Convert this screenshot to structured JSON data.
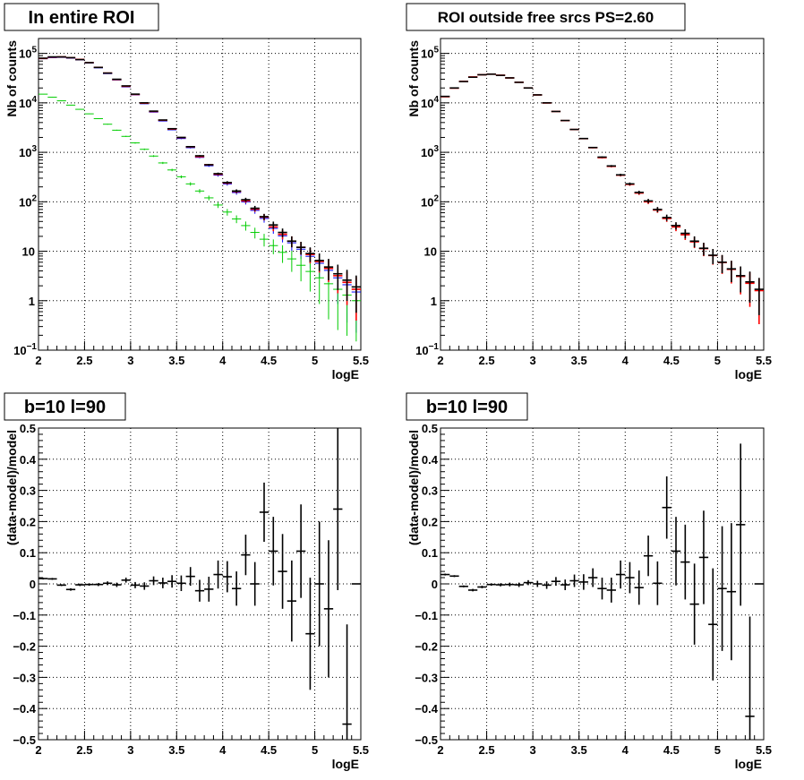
{
  "colors": {
    "data": "#000000",
    "model": "#ff0000",
    "component_blue": "#0000ff",
    "component_green": "#00cc00",
    "grid": "#000000"
  },
  "chart_data": [
    {
      "type": "scatter",
      "title": "In entire ROI",
      "xlabel": "logE",
      "ylabel": "Nb of counts",
      "xlim": [
        2,
        5.5
      ],
      "ylim": [
        0.1,
        200000
      ],
      "log_y": true,
      "grid": true,
      "x_ticks": [
        "2",
        "2.5",
        "3",
        "3.5",
        "4",
        "4.5",
        "5",
        "5.5"
      ],
      "y_ticks": [
        {
          "value": 0.1,
          "mant": "10",
          "exp": "−1"
        },
        {
          "value": 1,
          "mant": "1",
          "exp": ""
        },
        {
          "value": 10,
          "mant": "10",
          "exp": ""
        },
        {
          "value": 100,
          "mant": "10",
          "exp": "2"
        },
        {
          "value": 1000,
          "mant": "10",
          "exp": "3"
        },
        {
          "value": 10000,
          "mant": "10",
          "exp": "4"
        },
        {
          "value": 100000,
          "mant": "10",
          "exp": "5"
        }
      ],
      "x": [
        2.05,
        2.15,
        2.25,
        2.35,
        2.45,
        2.55,
        2.65,
        2.75,
        2.85,
        2.95,
        3.05,
        3.15,
        3.25,
        3.35,
        3.45,
        3.55,
        3.65,
        3.75,
        3.85,
        3.95,
        4.05,
        4.15,
        4.25,
        4.35,
        4.45,
        4.55,
        4.65,
        4.75,
        4.85,
        4.95,
        5.05,
        5.15,
        5.25,
        5.35,
        5.45
      ],
      "series": [
        {
          "role": "data",
          "color": "#000000",
          "values": [
            80000,
            85000,
            85000,
            82000,
            75000,
            65000,
            52000,
            40000,
            30000,
            22000,
            15000,
            10000,
            6800,
            4500,
            3000,
            2000,
            1300,
            850,
            560,
            370,
            245,
            165,
            110,
            74,
            50,
            34,
            24,
            16,
            12,
            9,
            6.5,
            4.8,
            3.5,
            2.6,
            1.9
          ],
          "err": [
            0.005,
            0.005,
            0.005,
            0.005,
            0.005,
            0.005,
            0.005,
            0.005,
            0.006,
            0.006,
            0.008,
            0.01,
            0.012,
            0.015,
            0.02,
            0.022,
            0.028,
            0.034,
            0.042,
            0.052,
            0.064,
            0.078,
            0.095,
            0.115,
            0.14,
            0.17,
            0.2,
            0.25,
            0.29,
            0.33,
            0.39,
            0.46,
            0.53,
            0.62,
            0.7
          ]
        },
        {
          "role": "model",
          "color": "#ff0000",
          "values": [
            79000,
            84000,
            85000,
            82000,
            75500,
            65200,
            52200,
            40000,
            29600,
            21600,
            14800,
            9850,
            6700,
            4450,
            2950,
            1980,
            1290,
            820,
            560,
            360,
            240,
            162,
            105,
            71,
            49,
            31,
            22,
            16,
            12,
            8.6,
            6.2,
            4.5,
            3.2,
            2.35,
            1.7
          ]
        },
        {
          "role": "component",
          "color": "#0000ff",
          "values": [
            78000,
            82000,
            83000,
            80000,
            74000,
            64000,
            51000,
            39000,
            29000,
            21000,
            14500,
            9600,
            6500,
            4300,
            2850,
            1900,
            1240,
            790,
            535,
            345,
            230,
            154,
            100,
            67,
            46,
            29,
            20.5,
            14.8,
            11,
            7.9,
            5.7,
            4.1,
            2.9,
            2.1,
            1.5
          ]
        },
        {
          "role": "component",
          "color": "#00cc00",
          "values": [
            15000,
            13000,
            11000,
            9000,
            7400,
            6000,
            4800,
            3700,
            2800,
            2100,
            1550,
            1150,
            840,
            610,
            440,
            320,
            230,
            165,
            120,
            86,
            62,
            45,
            33,
            24,
            17.5,
            13,
            9.5,
            7,
            5.2,
            3.9,
            2.9,
            2.2,
            1.7,
            1.3,
            1
          ]
        }
      ]
    },
    {
      "type": "scatter",
      "title": "ROI outside free srcs PS=2.60",
      "xlabel": "logE",
      "ylabel": "Nb of counts",
      "xlim": [
        2,
        5.5
      ],
      "ylim": [
        0.1,
        200000
      ],
      "log_y": true,
      "grid": true,
      "x_ticks": [
        "2",
        "2.5",
        "3",
        "3.5",
        "4",
        "4.5",
        "5",
        "5.5"
      ],
      "y_ticks": [
        {
          "value": 0.1,
          "mant": "10",
          "exp": "−1"
        },
        {
          "value": 1,
          "mant": "1",
          "exp": ""
        },
        {
          "value": 10,
          "mant": "10",
          "exp": ""
        },
        {
          "value": 100,
          "mant": "10",
          "exp": "2"
        },
        {
          "value": 1000,
          "mant": "10",
          "exp": "3"
        },
        {
          "value": 10000,
          "mant": "10",
          "exp": "4"
        },
        {
          "value": 100000,
          "mant": "10",
          "exp": "5"
        }
      ],
      "x": [
        2.05,
        2.15,
        2.25,
        2.35,
        2.45,
        2.55,
        2.65,
        2.75,
        2.85,
        2.95,
        3.05,
        3.15,
        3.25,
        3.35,
        3.45,
        3.55,
        3.65,
        3.75,
        3.85,
        3.95,
        4.05,
        4.15,
        4.25,
        4.35,
        4.45,
        4.55,
        4.65,
        4.75,
        4.85,
        4.95,
        5.05,
        5.15,
        5.25,
        5.35,
        5.45
      ],
      "series": [
        {
          "role": "data",
          "color": "#000000",
          "values": [
            13500,
            20000,
            27000,
            33000,
            37000,
            38000,
            36000,
            32000,
            26000,
            20000,
            14500,
            10000,
            6700,
            4400,
            2900,
            1900,
            1250,
            800,
            530,
            350,
            230,
            155,
            104,
            70,
            48,
            33,
            23,
            16,
            11.5,
            8.3,
            6,
            4.4,
            3.2,
            2.4,
            1.7
          ],
          "err": [
            0.006,
            0.006,
            0.006,
            0.006,
            0.006,
            0.006,
            0.006,
            0.006,
            0.006,
            0.007,
            0.009,
            0.011,
            0.013,
            0.016,
            0.02,
            0.023,
            0.028,
            0.035,
            0.043,
            0.053,
            0.066,
            0.08,
            0.098,
            0.12,
            0.145,
            0.17,
            0.21,
            0.25,
            0.29,
            0.34,
            0.4,
            0.46,
            0.54,
            0.62,
            0.7
          ]
        },
        {
          "role": "model",
          "color": "#ff0000",
          "values": [
            13300,
            19800,
            27200,
            33400,
            37000,
            38100,
            36200,
            31900,
            26100,
            20000,
            14450,
            9950,
            6700,
            4370,
            2890,
            1890,
            1240,
            780,
            520,
            345,
            225,
            150,
            100,
            68,
            46,
            31,
            21.5,
            15.5,
            11.3,
            8.2,
            5.9,
            4.3,
            3.1,
            2.25,
            1.6
          ]
        }
      ]
    },
    {
      "type": "scatter",
      "title": "b=10 l=90",
      "xlabel": "logE",
      "ylabel": "(data-model)/model",
      "xlim": [
        2,
        5.5
      ],
      "ylim": [
        -0.5,
        0.5
      ],
      "grid": true,
      "x_ticks": [
        "2",
        "2.5",
        "3",
        "3.5",
        "4",
        "4.5",
        "5",
        "5.5"
      ],
      "y_ticks": [
        "−0.5",
        "−0.4",
        "−0.3",
        "−0.2",
        "−0.1",
        "0",
        "0.1",
        "0.2",
        "0.3",
        "0.4",
        "0.5"
      ],
      "x": [
        2.05,
        2.15,
        2.25,
        2.35,
        2.45,
        2.55,
        2.65,
        2.75,
        2.85,
        2.95,
        3.05,
        3.15,
        3.25,
        3.35,
        3.45,
        3.55,
        3.65,
        3.75,
        3.85,
        3.95,
        4.05,
        4.15,
        4.25,
        4.35,
        4.45,
        4.55,
        4.65,
        4.75,
        4.85,
        4.95,
        5.05,
        5.15,
        5.25,
        5.35,
        5.45
      ],
      "values": [
        0.017,
        0.016,
        -0.004,
        -0.018,
        -0.003,
        -0.002,
        -0.002,
        0.002,
        -0.003,
        0.012,
        -0.004,
        -0.007,
        0.01,
        0.003,
        0.008,
        0.002,
        0.024,
        -0.022,
        -0.017,
        0.03,
        0.023,
        -0.015,
        0.093,
        0.0,
        0.23,
        0.105,
        0.04,
        -0.055,
        0.105,
        -0.16,
        0.0,
        -0.08,
        0.24,
        -0.45,
        0.0
      ],
      "err": [
        0.003,
        0.003,
        0.003,
        0.004,
        0.004,
        0.004,
        0.005,
        0.006,
        0.007,
        0.008,
        0.01,
        0.012,
        0.014,
        0.017,
        0.02,
        0.025,
        0.03,
        0.035,
        0.04,
        0.045,
        0.05,
        0.055,
        0.065,
        0.07,
        0.095,
        0.11,
        0.12,
        0.13,
        0.15,
        0.18,
        0.2,
        0.22,
        0.26,
        0.32,
        0.0
      ]
    },
    {
      "type": "scatter",
      "title": "b=10 l=90",
      "xlabel": "logE",
      "ylabel": "(data-model)/model",
      "xlim": [
        2,
        5.5
      ],
      "ylim": [
        -0.5,
        0.5
      ],
      "grid": true,
      "x_ticks": [
        "2",
        "2.5",
        "3",
        "3.5",
        "4",
        "4.5",
        "5",
        "5.5"
      ],
      "y_ticks": [
        "−0.5",
        "−0.4",
        "−0.3",
        "−0.2",
        "−0.1",
        "0",
        "0.1",
        "0.2",
        "0.3",
        "0.4",
        "0.5"
      ],
      "x": [
        2.05,
        2.15,
        2.25,
        2.35,
        2.45,
        2.55,
        2.65,
        2.75,
        2.85,
        2.95,
        3.05,
        3.15,
        3.25,
        3.35,
        3.45,
        3.55,
        3.65,
        3.75,
        3.85,
        3.95,
        4.05,
        4.15,
        4.25,
        4.35,
        4.45,
        4.55,
        4.65,
        4.75,
        4.85,
        4.95,
        5.05,
        5.15,
        5.25,
        5.35,
        5.45
      ],
      "values": [
        0.03,
        0.025,
        -0.008,
        -0.02,
        -0.01,
        -0.002,
        -0.003,
        -0.002,
        -0.003,
        0.004,
        0.0,
        -0.004,
        0.008,
        -0.003,
        0.01,
        0.006,
        0.02,
        -0.015,
        -0.02,
        0.03,
        0.02,
        -0.012,
        0.09,
        0.002,
        0.245,
        0.105,
        0.07,
        -0.065,
        0.085,
        -0.13,
        -0.015,
        -0.025,
        0.19,
        -0.425,
        0.0
      ],
      "err": [
        0.003,
        0.003,
        0.003,
        0.004,
        0.004,
        0.004,
        0.005,
        0.006,
        0.007,
        0.008,
        0.01,
        0.012,
        0.014,
        0.017,
        0.02,
        0.025,
        0.03,
        0.035,
        0.04,
        0.045,
        0.05,
        0.055,
        0.065,
        0.07,
        0.1,
        0.11,
        0.12,
        0.13,
        0.15,
        0.18,
        0.2,
        0.22,
        0.26,
        0.32,
        0.0
      ]
    }
  ]
}
